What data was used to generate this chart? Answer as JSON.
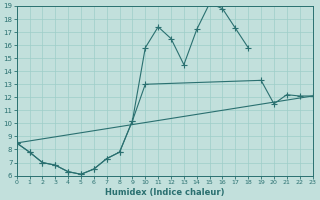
{
  "xlabel": "Humidex (Indice chaleur)",
  "xlim": [
    0,
    23
  ],
  "ylim": [
    6,
    19
  ],
  "xticks": [
    0,
    1,
    2,
    3,
    4,
    5,
    6,
    7,
    8,
    9,
    10,
    11,
    12,
    13,
    14,
    15,
    16,
    17,
    18,
    19,
    20,
    21,
    22,
    23
  ],
  "yticks": [
    6,
    7,
    8,
    9,
    10,
    11,
    12,
    13,
    14,
    15,
    16,
    17,
    18,
    19
  ],
  "background_color": "#c2e0dc",
  "grid_color": "#9ecec8",
  "line_color": "#2a7070",
  "line1_x": [
    0,
    1,
    2,
    3,
    4,
    5,
    6,
    7,
    8,
    9,
    10,
    11,
    12,
    13,
    14,
    15,
    16,
    17,
    18
  ],
  "line1_y": [
    8.5,
    7.8,
    7.0,
    6.8,
    6.3,
    6.1,
    6.5,
    7.3,
    7.8,
    10.2,
    15.8,
    17.4,
    16.5,
    14.5,
    17.2,
    19.2,
    18.8,
    17.3,
    15.8
  ],
  "line2_x": [
    0,
    1,
    2,
    3,
    4,
    5,
    6,
    7,
    8,
    9,
    10,
    19,
    20,
    21,
    22,
    23
  ],
  "line2_y": [
    8.5,
    7.8,
    7.0,
    6.8,
    6.3,
    6.1,
    6.5,
    7.3,
    7.8,
    10.2,
    13.0,
    13.3,
    11.5,
    12.2,
    12.1,
    12.1
  ],
  "line3_x": [
    0,
    23
  ],
  "line3_y": [
    8.5,
    12.1
  ]
}
